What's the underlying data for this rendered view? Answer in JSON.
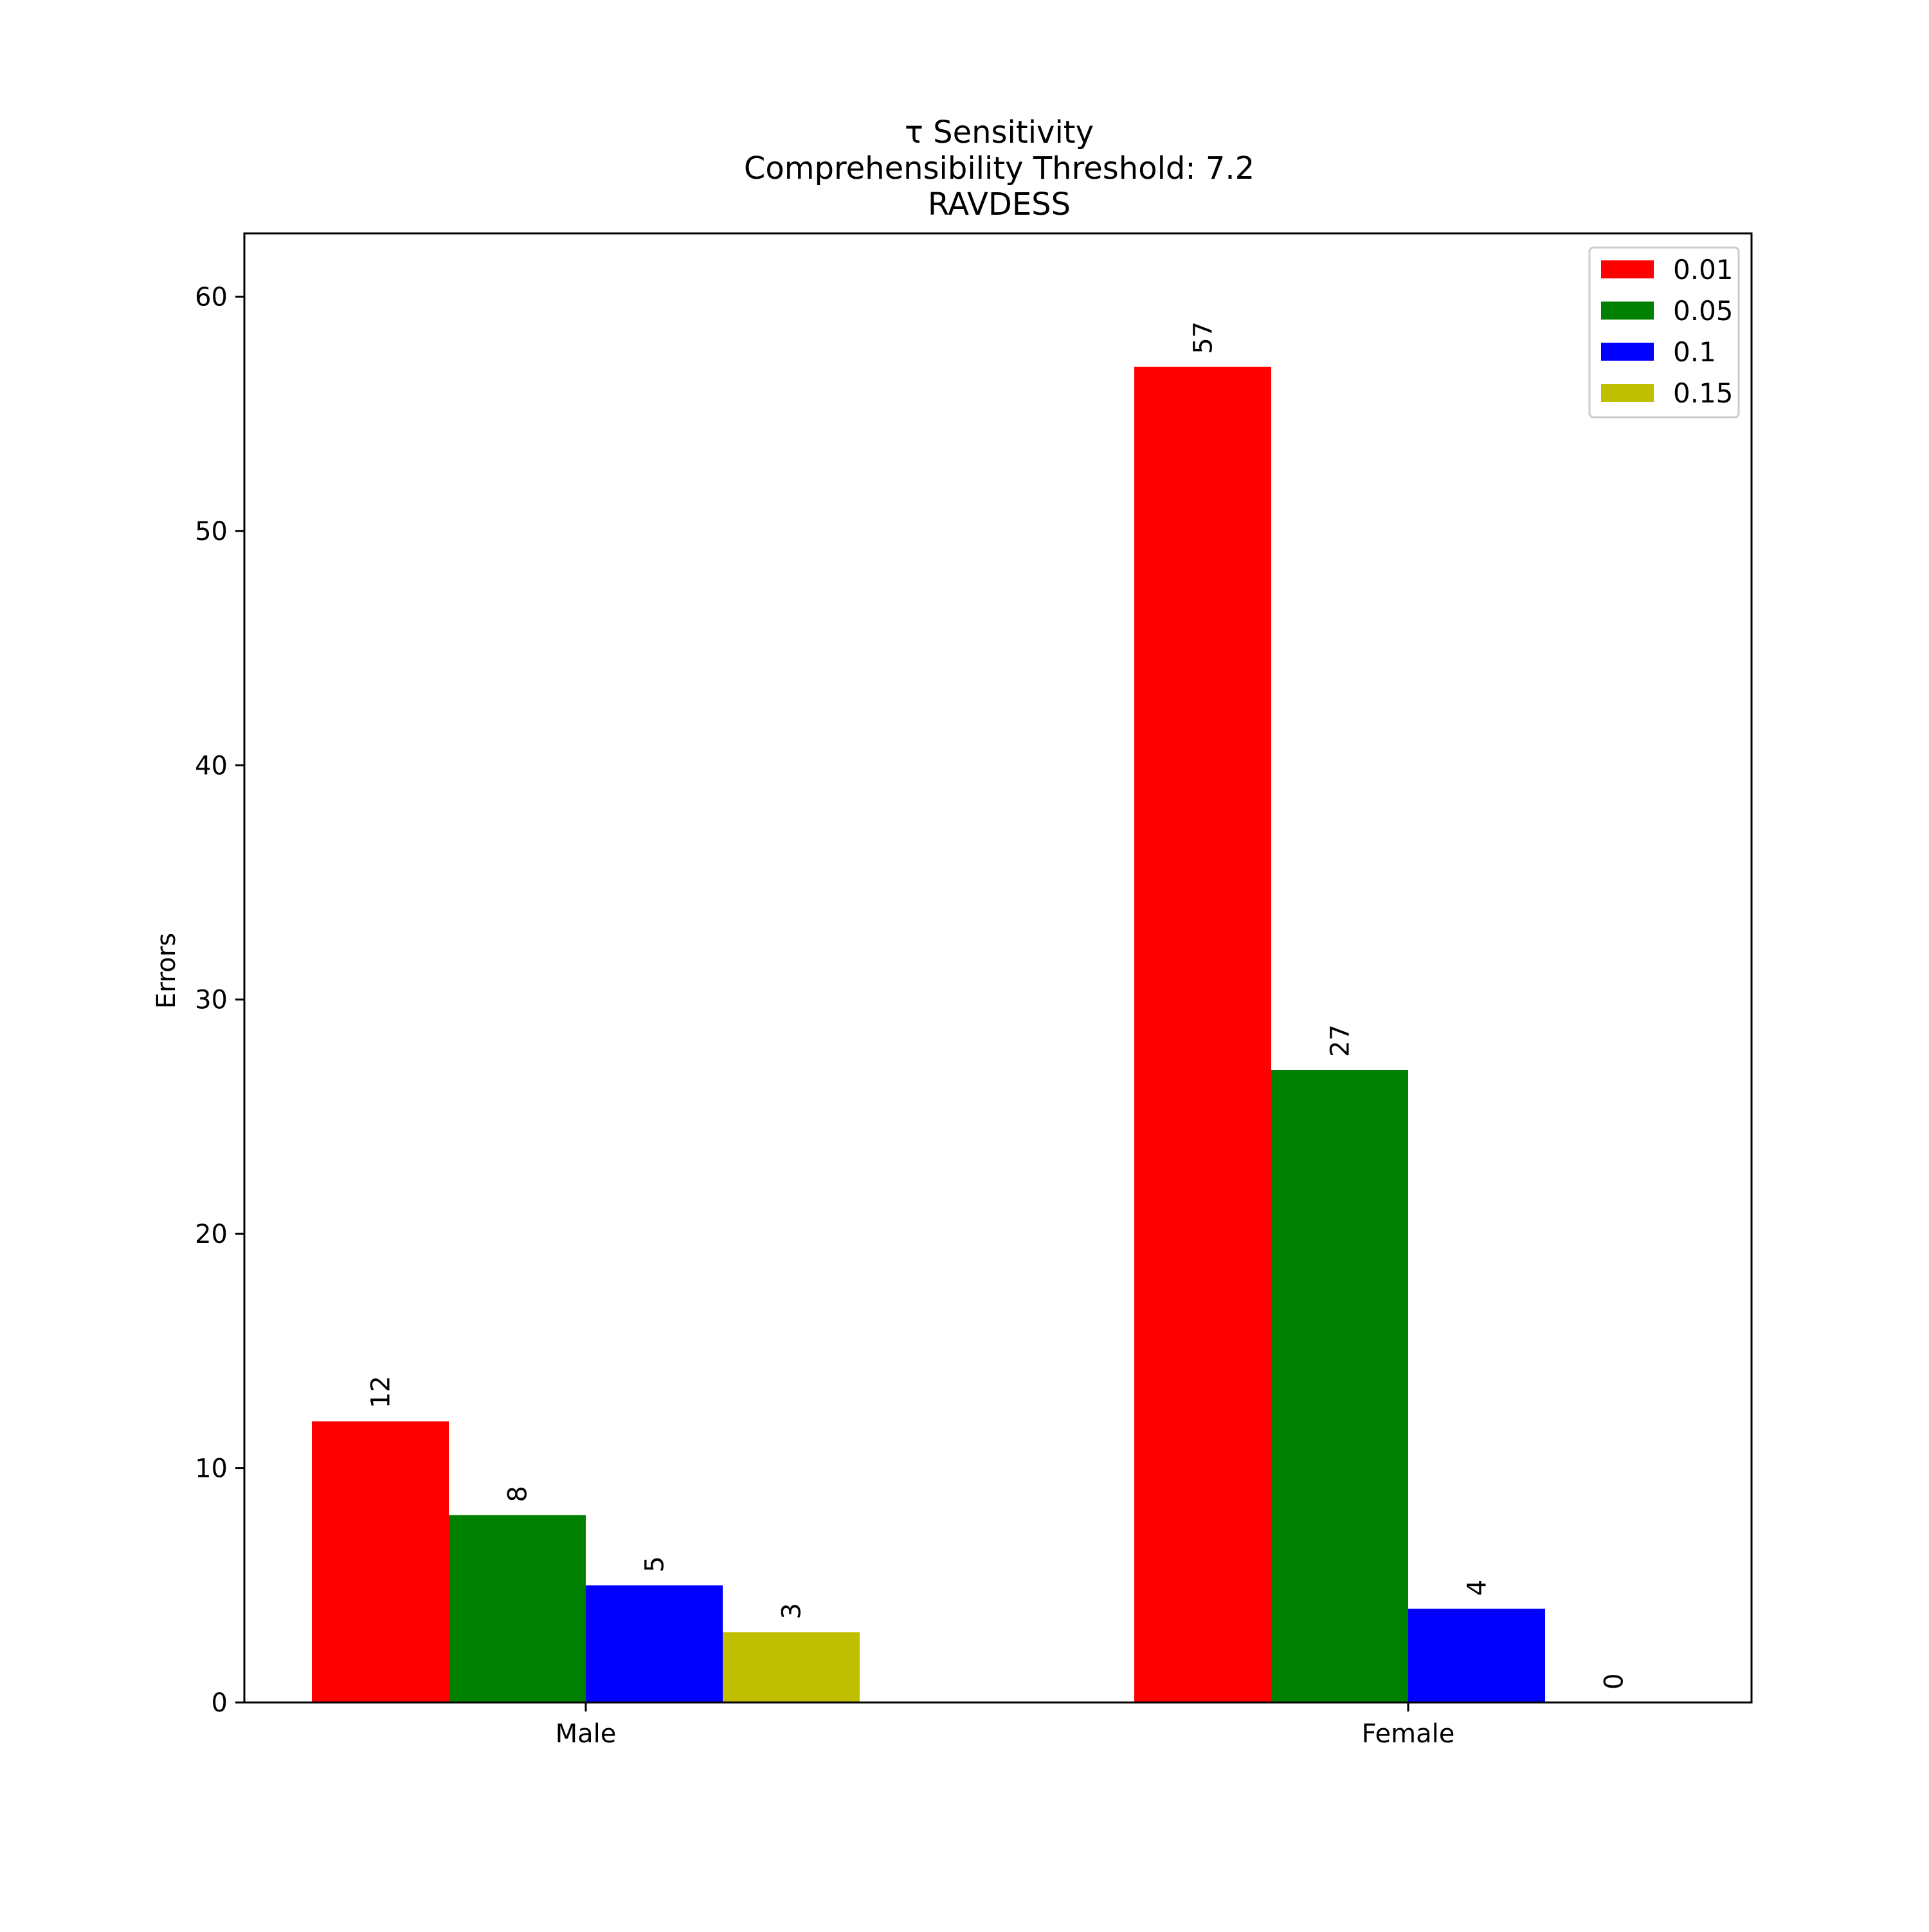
{
  "chart_data": {
    "type": "bar",
    "title_lines": [
      "τ Sensitivity",
      "Comprehensibility Threshold: 7.2",
      "RAVDESS"
    ],
    "xlabel": "",
    "ylabel": "Errors",
    "categories": [
      "Male",
      "Female"
    ],
    "series": [
      {
        "name": "0.01",
        "color": "#ff0000",
        "values": [
          12,
          57
        ]
      },
      {
        "name": "0.05",
        "color": "#008000",
        "values": [
          8,
          27
        ]
      },
      {
        "name": "0.1",
        "color": "#0000ff",
        "values": [
          5,
          4
        ]
      },
      {
        "name": "0.15",
        "color": "#bfbf00",
        "values": [
          3,
          0
        ]
      }
    ],
    "ylim": [
      0,
      62.7
    ],
    "yticks": [
      0,
      10,
      20,
      30,
      40,
      50,
      60
    ],
    "grid": false,
    "legend_position": "top-right",
    "bar_value_labels": true
  }
}
